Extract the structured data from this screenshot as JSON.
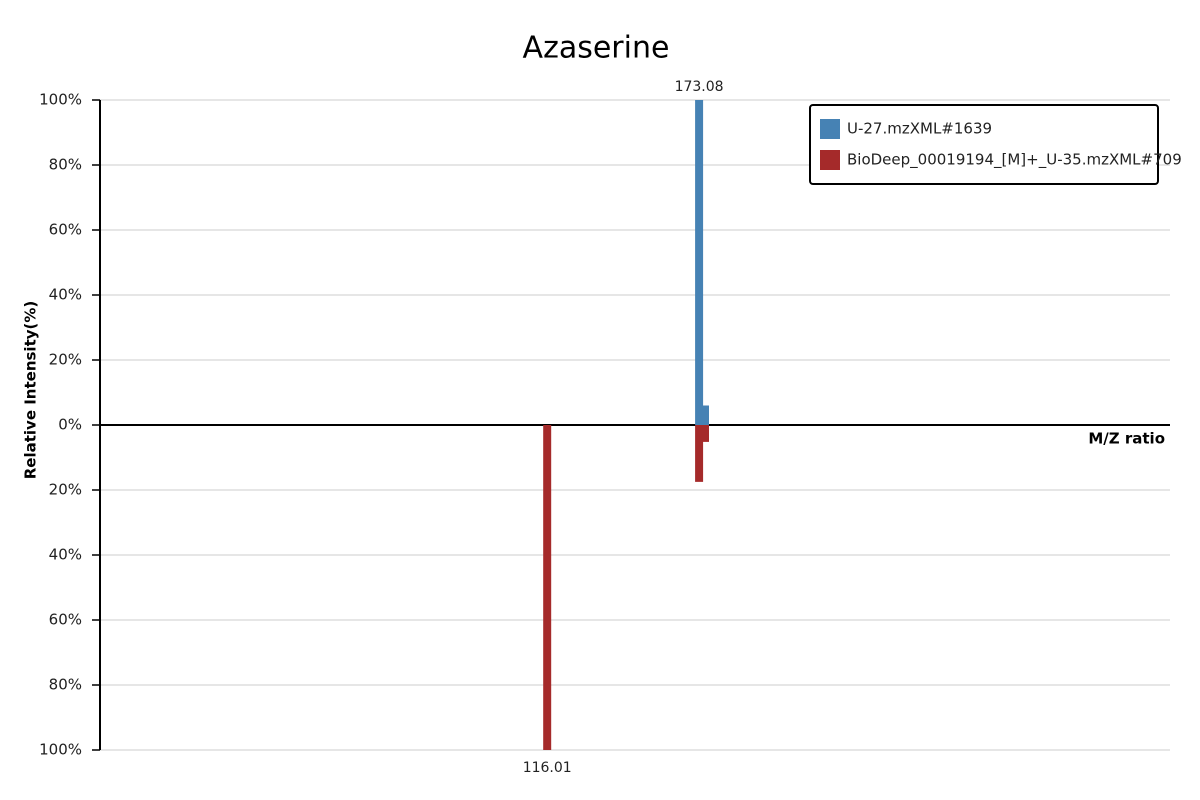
{
  "chart_data": {
    "type": "mirror-spectrum",
    "title": "Azaserine",
    "y_label": "Relative Intensity(%)",
    "x_label": "M/Z ratio",
    "xlim": [
      -52,
      350
    ],
    "ylim": [
      -100,
      100
    ],
    "yticks": [
      {
        "value": -100,
        "label": "100%"
      },
      {
        "value": -80,
        "label": "80%"
      },
      {
        "value": -60,
        "label": "60%"
      },
      {
        "value": -40,
        "label": "40%"
      },
      {
        "value": -20,
        "label": "20%"
      },
      {
        "value": 0,
        "label": "0%"
      },
      {
        "value": 20,
        "label": "20%"
      },
      {
        "value": 40,
        "label": "40%"
      },
      {
        "value": 60,
        "label": "60%"
      },
      {
        "value": 80,
        "label": "80%"
      },
      {
        "value": 100,
        "label": "100%"
      }
    ],
    "grid": true,
    "legend": "top-right",
    "series": [
      {
        "name": "U-27.mzXML#1639",
        "color": "#4682b4",
        "x": [
          173.08,
          175.3
        ],
        "values": [
          100,
          6
        ]
      },
      {
        "name": "BioDeep_00019194_[M]+_U-35.mzXML#709",
        "color": "#a52a2a",
        "x": [
          116.01,
          173.08,
          175.3
        ],
        "values": [
          -100,
          -17.5,
          -5.2
        ]
      }
    ]
  }
}
